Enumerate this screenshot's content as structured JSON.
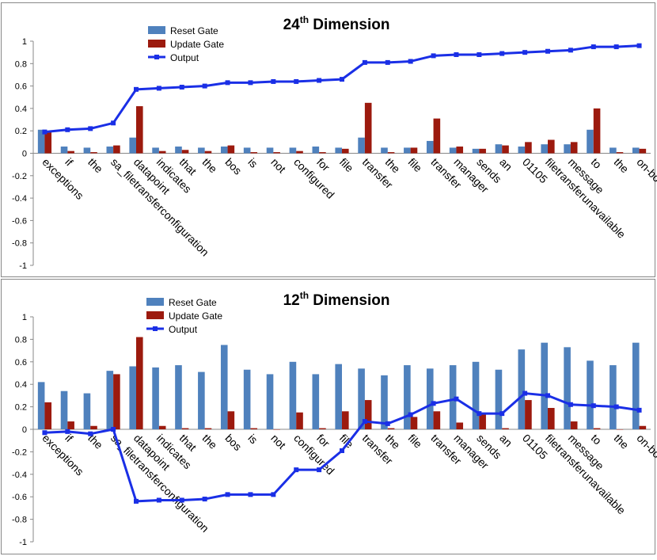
{
  "chart_data": [
    {
      "type": "bar",
      "title_base": "24",
      "title_sup": "th",
      "title_rest": " Dimension",
      "ylim": [
        -1,
        1
      ],
      "yticks": [
        "1",
        "0.8",
        "0.6",
        "0.4",
        "0.2",
        "0",
        "-0.2",
        "-0.4",
        "-0.6",
        "-0.8",
        "-1"
      ],
      "categories": [
        "exceptions",
        "if",
        "the",
        "sa_filetransferconfiguration",
        "datapoint",
        "indicates",
        "that",
        "the",
        "bos",
        "is",
        "not",
        "configured",
        "for",
        "file",
        "transfer",
        "the",
        "file",
        "transfer",
        "manager",
        "sends",
        "an",
        "01105",
        "filetransferunavailable",
        "message",
        "to",
        "the",
        "on-board"
      ],
      "legend": [
        "Reset Gate",
        "Update Gate",
        "Output"
      ],
      "series": [
        {
          "name": "Reset Gate",
          "kind": "bar",
          "values": [
            0.21,
            0.06,
            0.05,
            0.06,
            0.14,
            0.05,
            0.06,
            0.05,
            0.06,
            0.05,
            0.05,
            0.05,
            0.06,
            0.05,
            0.14,
            0.05,
            0.05,
            0.11,
            0.05,
            0.04,
            0.08,
            0.06,
            0.08,
            0.08,
            0.21,
            0.05,
            0.05
          ]
        },
        {
          "name": "Update Gate",
          "kind": "bar",
          "values": [
            0.2,
            0.02,
            0.01,
            0.07,
            0.42,
            0.02,
            0.03,
            0.02,
            0.07,
            0.01,
            0.01,
            0.02,
            0.01,
            0.04,
            0.45,
            0.01,
            0.05,
            0.31,
            0.06,
            0.04,
            0.07,
            0.1,
            0.12,
            0.1,
            0.4,
            0.01,
            0.04
          ]
        },
        {
          "name": "Output",
          "kind": "line",
          "values": [
            0.19,
            0.21,
            0.22,
            0.27,
            0.57,
            0.58,
            0.59,
            0.6,
            0.63,
            0.63,
            0.64,
            0.64,
            0.65,
            0.66,
            0.81,
            0.81,
            0.82,
            0.87,
            0.88,
            0.88,
            0.89,
            0.9,
            0.91,
            0.92,
            0.95,
            0.95,
            0.96
          ]
        }
      ]
    },
    {
      "type": "bar",
      "title_base": "12",
      "title_sup": "th",
      "title_rest": " Dimension",
      "ylim": [
        -1,
        1
      ],
      "yticks": [
        "1",
        "0.8",
        "0.6",
        "0.4",
        "0.2",
        "0",
        "-0.2",
        "-0.4",
        "-0.6",
        "-0.8",
        "-1"
      ],
      "categories": [
        "exceptions",
        "if",
        "the",
        "sa_filetransferconfiguration",
        "datapoint",
        "indicates",
        "that",
        "the",
        "bos",
        "is",
        "not",
        "configured",
        "for",
        "file",
        "transfer",
        "the",
        "file",
        "transfer",
        "manager",
        "sends",
        "an",
        "01105",
        "filetransferunavailable",
        "message",
        "to",
        "the",
        "on-board"
      ],
      "legend": [
        "Reset Gate",
        "Update Gate",
        "Output"
      ],
      "series": [
        {
          "name": "Reset Gate",
          "kind": "bar",
          "values": [
            0.42,
            0.34,
            0.32,
            0.52,
            0.56,
            0.55,
            0.57,
            0.51,
            0.75,
            0.53,
            0.49,
            0.6,
            0.49,
            0.58,
            0.54,
            0.48,
            0.57,
            0.54,
            0.57,
            0.6,
            0.53,
            0.71,
            0.77,
            0.73,
            0.61,
            0.57,
            0.77
          ]
        },
        {
          "name": "Update Gate",
          "kind": "bar",
          "values": [
            0.24,
            0.07,
            0.03,
            0.49,
            0.82,
            0.03,
            0.01,
            0.01,
            0.16,
            0.01,
            0.0,
            0.15,
            0.01,
            0.16,
            0.26,
            0.01,
            0.11,
            0.16,
            0.06,
            0.14,
            0.01,
            0.26,
            0.19,
            0.07,
            0.01,
            0.0,
            0.03
          ]
        },
        {
          "name": "Output",
          "kind": "line",
          "values": [
            -0.03,
            -0.02,
            -0.04,
            0.0,
            -0.64,
            -0.63,
            -0.63,
            -0.62,
            -0.58,
            -0.58,
            -0.58,
            -0.36,
            -0.36,
            -0.19,
            0.07,
            0.05,
            0.13,
            0.23,
            0.27,
            0.14,
            0.14,
            0.32,
            0.3,
            0.22,
            0.21,
            0.2,
            0.17
          ]
        }
      ]
    }
  ],
  "colors": {
    "reset": "#4F81BD",
    "update": "#9C1A0E",
    "output": "#1A2FE6",
    "border": "#888888",
    "axis": "#888888",
    "text": "#000000"
  }
}
